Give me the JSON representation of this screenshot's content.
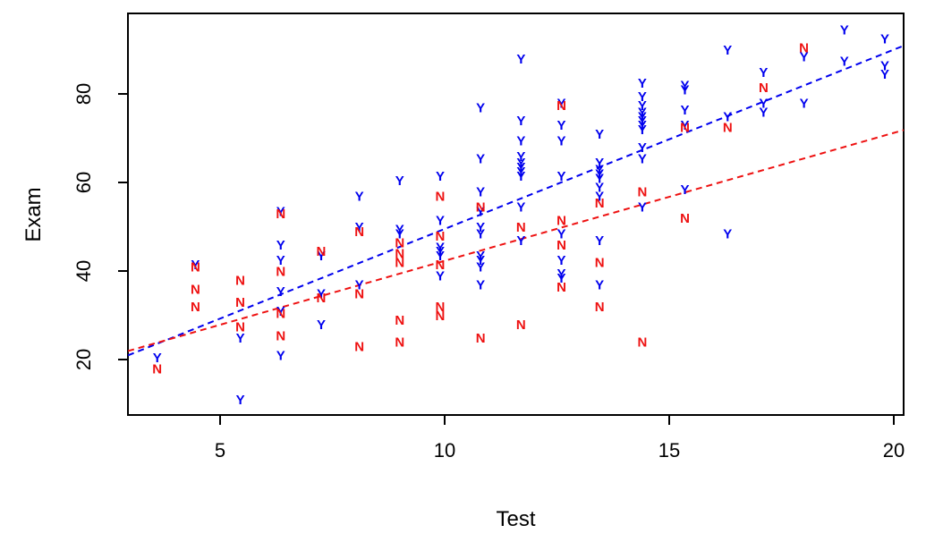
{
  "chart_data": {
    "type": "scatter",
    "title": "",
    "xlabel": "Test",
    "ylabel": "Exam",
    "xlim": [
      2.95,
      20.22
    ],
    "ylim": [
      7.5,
      98.2
    ],
    "xticks": [
      5,
      10,
      15,
      20
    ],
    "yticks": [
      20,
      40,
      60,
      80
    ],
    "grid": false,
    "legend": "none",
    "marker_style": "letter",
    "series": [
      {
        "name": "Y",
        "marker": "Y",
        "color": "#0000ee",
        "points": [
          [
            3.6,
            20.5
          ],
          [
            4.45,
            41.5
          ],
          [
            5.45,
            25
          ],
          [
            5.45,
            11
          ],
          [
            6.35,
            53.5
          ],
          [
            6.35,
            46
          ],
          [
            6.35,
            42.5
          ],
          [
            6.35,
            35.5
          ],
          [
            6.35,
            31
          ],
          [
            6.35,
            21
          ],
          [
            7.25,
            43.5
          ],
          [
            7.25,
            35
          ],
          [
            7.25,
            28
          ],
          [
            8.1,
            57
          ],
          [
            8.1,
            50
          ],
          [
            8.1,
            37
          ],
          [
            9,
            60.5
          ],
          [
            9,
            49.5
          ],
          [
            9,
            48.5
          ],
          [
            9.9,
            61.5
          ],
          [
            9.9,
            51.5
          ],
          [
            9.9,
            45.5
          ],
          [
            9.9,
            44.5
          ],
          [
            9.9,
            43.5
          ],
          [
            9.9,
            39
          ],
          [
            10.8,
            77
          ],
          [
            10.8,
            65.5
          ],
          [
            10.8,
            58
          ],
          [
            10.8,
            53.5
          ],
          [
            10.8,
            50
          ],
          [
            10.8,
            48.5
          ],
          [
            10.8,
            43.5
          ],
          [
            10.8,
            42.5
          ],
          [
            10.8,
            41
          ],
          [
            10.8,
            37
          ],
          [
            11.7,
            88
          ],
          [
            11.7,
            74
          ],
          [
            11.7,
            69.5
          ],
          [
            11.7,
            66
          ],
          [
            11.7,
            64.5
          ],
          [
            11.7,
            63.5
          ],
          [
            11.7,
            62.5
          ],
          [
            11.7,
            61.5
          ],
          [
            11.7,
            54.5
          ],
          [
            11.7,
            47
          ],
          [
            12.6,
            78
          ],
          [
            12.6,
            73
          ],
          [
            12.6,
            69.5
          ],
          [
            12.6,
            61.5
          ],
          [
            12.6,
            48.5
          ],
          [
            12.6,
            42.5
          ],
          [
            12.6,
            39.5
          ],
          [
            12.6,
            38.5
          ],
          [
            13.45,
            71
          ],
          [
            13.45,
            64.5
          ],
          [
            13.45,
            63
          ],
          [
            13.45,
            62
          ],
          [
            13.45,
            61
          ],
          [
            13.45,
            59
          ],
          [
            13.45,
            57
          ],
          [
            13.45,
            47
          ],
          [
            13.45,
            37
          ],
          [
            14.4,
            82.5
          ],
          [
            14.4,
            79.5
          ],
          [
            14.4,
            77.5
          ],
          [
            14.4,
            76
          ],
          [
            14.4,
            75
          ],
          [
            14.4,
            74
          ],
          [
            14.4,
            73
          ],
          [
            14.4,
            72
          ],
          [
            14.4,
            68
          ],
          [
            14.4,
            65.5
          ],
          [
            14.4,
            54.5
          ],
          [
            15.35,
            82
          ],
          [
            15.35,
            81
          ],
          [
            15.35,
            76.5
          ],
          [
            15.35,
            73
          ],
          [
            15.35,
            58.5
          ],
          [
            16.3,
            90
          ],
          [
            16.3,
            75
          ],
          [
            16.3,
            48.5
          ],
          [
            17.1,
            85
          ],
          [
            17.1,
            78
          ],
          [
            17.1,
            76
          ],
          [
            18,
            88.5
          ],
          [
            18,
            78
          ],
          [
            18.9,
            94.5
          ],
          [
            18.9,
            87.5
          ],
          [
            19.8,
            92.5
          ],
          [
            19.8,
            86.5
          ],
          [
            19.8,
            84.5
          ]
        ]
      },
      {
        "name": "N",
        "marker": "N",
        "color": "#ee1111",
        "points": [
          [
            3.6,
            18
          ],
          [
            4.45,
            41
          ],
          [
            4.45,
            36
          ],
          [
            4.45,
            32
          ],
          [
            5.45,
            38
          ],
          [
            5.45,
            33
          ],
          [
            5.45,
            27.5
          ],
          [
            6.35,
            53
          ],
          [
            6.35,
            40
          ],
          [
            6.35,
            30.5
          ],
          [
            6.35,
            25.5
          ],
          [
            7.25,
            44.5
          ],
          [
            7.25,
            34
          ],
          [
            8.1,
            49
          ],
          [
            8.1,
            35
          ],
          [
            8.1,
            23
          ],
          [
            9,
            46.5
          ],
          [
            9,
            44
          ],
          [
            9,
            42
          ],
          [
            9,
            29
          ],
          [
            9,
            24
          ],
          [
            9.9,
            57
          ],
          [
            9.9,
            48
          ],
          [
            9.9,
            41.5
          ],
          [
            9.9,
            32
          ],
          [
            9.9,
            30
          ],
          [
            10.8,
            54.5
          ],
          [
            10.8,
            25
          ],
          [
            11.7,
            50
          ],
          [
            11.7,
            28
          ],
          [
            12.6,
            77.5
          ],
          [
            12.6,
            51.5
          ],
          [
            12.6,
            46
          ],
          [
            12.6,
            36.5
          ],
          [
            13.45,
            55.5
          ],
          [
            13.45,
            42
          ],
          [
            13.45,
            32
          ],
          [
            14.4,
            58
          ],
          [
            14.4,
            24
          ],
          [
            15.35,
            72.5
          ],
          [
            15.35,
            52
          ],
          [
            16.3,
            72.5
          ],
          [
            17.1,
            81.5
          ],
          [
            18,
            90.5
          ]
        ]
      }
    ],
    "lines": [
      {
        "name": "fit-line-Y",
        "color": "#0000ee",
        "style": "dashed",
        "slope": 4.05,
        "intercept": 9.0
      },
      {
        "name": "fit-line-N",
        "color": "#ee1111",
        "style": "dashed",
        "slope": 2.89,
        "intercept": 13.4
      }
    ]
  }
}
